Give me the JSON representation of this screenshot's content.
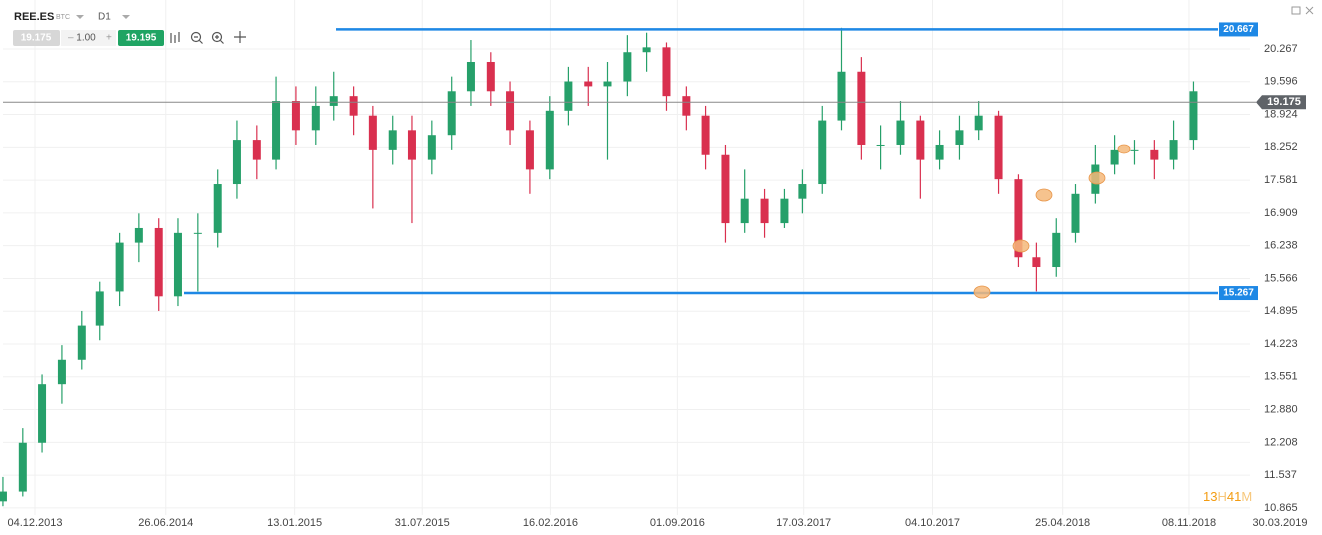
{
  "toolbar": {
    "symbol": "REE.ES",
    "currency": "BTC",
    "interval": "D1",
    "bid": "19.175",
    "lot": "1.00",
    "ask": "19.195"
  },
  "countdown": [
    "13",
    "H",
    "41",
    "M"
  ],
  "chart_data": {
    "type": "candlestick",
    "x": [
      "15.10.2013",
      "15.11.2013",
      "15.12.2013",
      "15.01.2014",
      "15.02.2014",
      "15.03.2014",
      "15.04.2014",
      "15.05.2014",
      "15.06.2014",
      "15.07.2014",
      "15.08.2014",
      "15.09.2014",
      "15.10.2014",
      "15.11.2014",
      "15.12.2014",
      "15.01.2015",
      "15.02.2015",
      "15.03.2015",
      "15.04.2015",
      "15.05.2015",
      "15.06.2015",
      "15.07.2015",
      "15.08.2015",
      "15.09.2015",
      "15.10.2015",
      "15.11.2015",
      "15.12.2015",
      "15.01.2016",
      "15.02.2016",
      "15.03.2016",
      "15.04.2016",
      "15.05.2016",
      "15.06.2016",
      "15.07.2016",
      "15.08.2016",
      "15.09.2016",
      "15.10.2016",
      "15.11.2016",
      "15.12.2016",
      "15.01.2017",
      "15.02.2017",
      "15.03.2017",
      "15.04.2017",
      "15.05.2017",
      "15.06.2017",
      "15.07.2017",
      "15.08.2017",
      "15.09.2017",
      "15.10.2017",
      "15.11.2017",
      "15.12.2017",
      "15.01.2018",
      "15.02.2018",
      "15.03.2018",
      "15.04.2018",
      "15.05.2018",
      "15.06.2018",
      "15.07.2018",
      "15.08.2018",
      "15.09.2018",
      "15.10.2018",
      "15.11.2018"
    ],
    "open": [
      11.0,
      11.2,
      12.2,
      13.4,
      13.9,
      14.6,
      15.3,
      16.3,
      16.6,
      15.2,
      16.5,
      16.5,
      17.5,
      18.4,
      18.0,
      19.2,
      18.6,
      19.1,
      19.3,
      18.9,
      18.2,
      18.6,
      18.0,
      18.5,
      19.4,
      20.0,
      19.4,
      18.6,
      17.8,
      19.0,
      19.6,
      19.5,
      19.6,
      20.2,
      20.3,
      19.3,
      18.9,
      18.1,
      16.7,
      17.2,
      16.7,
      17.2,
      17.5,
      18.8,
      19.8,
      18.3,
      18.3,
      18.8,
      18.0,
      18.3,
      18.6,
      18.9,
      17.6,
      16.0,
      15.8,
      16.5,
      17.3,
      17.9,
      18.2,
      18.2,
      18.0,
      18.4
    ],
    "high": [
      11.5,
      12.5,
      13.6,
      14.2,
      14.9,
      15.5,
      16.5,
      16.9,
      16.8,
      16.8,
      16.9,
      17.8,
      18.8,
      18.7,
      19.7,
      19.5,
      19.5,
      19.8,
      19.5,
      19.1,
      18.9,
      18.9,
      18.8,
      19.7,
      20.45,
      20.2,
      19.6,
      18.8,
      19.3,
      19.9,
      19.9,
      20.0,
      20.55,
      20.6,
      20.4,
      19.5,
      19.1,
      18.3,
      17.8,
      17.4,
      17.4,
      17.8,
      19.1,
      20.7,
      20.1,
      18.7,
      19.2,
      18.9,
      18.6,
      18.9,
      19.2,
      19.0,
      17.7,
      16.3,
      16.8,
      17.5,
      18.3,
      18.5,
      18.4,
      18.4,
      18.8,
      19.6
    ],
    "low": [
      10.9,
      11.1,
      12.0,
      13.0,
      13.7,
      14.3,
      15.0,
      15.9,
      14.9,
      15.0,
      15.3,
      16.2,
      17.2,
      17.6,
      17.8,
      18.3,
      18.3,
      18.8,
      18.5,
      17.0,
      17.9,
      16.7,
      17.7,
      18.2,
      19.1,
      19.1,
      18.3,
      17.3,
      17.6,
      18.7,
      19.1,
      18.0,
      19.3,
      19.8,
      19.0,
      18.6,
      17.8,
      16.3,
      16.5,
      16.4,
      16.6,
      16.9,
      17.3,
      18.6,
      18.0,
      17.8,
      18.1,
      17.2,
      17.8,
      18.0,
      18.4,
      17.3,
      15.8,
      15.3,
      15.6,
      16.3,
      17.1,
      17.7,
      17.9,
      17.6,
      17.8,
      18.2
    ],
    "close": [
      11.2,
      12.2,
      13.4,
      13.9,
      14.6,
      15.3,
      16.3,
      16.6,
      15.2,
      16.5,
      16.5,
      17.5,
      18.4,
      18.0,
      19.2,
      18.6,
      19.1,
      19.3,
      18.9,
      18.2,
      18.6,
      18.0,
      18.5,
      19.4,
      20.0,
      19.4,
      18.6,
      17.8,
      19.0,
      19.6,
      19.5,
      19.6,
      20.2,
      20.3,
      19.3,
      18.9,
      18.1,
      16.7,
      17.2,
      16.7,
      17.2,
      17.5,
      18.8,
      19.8,
      18.3,
      18.3,
      18.8,
      18.0,
      18.3,
      18.6,
      18.9,
      17.6,
      16.0,
      15.8,
      16.5,
      17.3,
      17.9,
      18.2,
      18.2,
      18.0,
      18.4,
      19.4
    ],
    "up_color": "#26a06a",
    "down_color": "#d9304f",
    "ylim": [
      10.72,
      21.27
    ],
    "yticks": [
      20.267,
      19.596,
      18.924,
      18.252,
      17.581,
      16.909,
      16.238,
      15.566,
      14.895,
      14.223,
      13.551,
      {
        "value": 12.88,
        "label": "12.880"
      },
      12.208,
      11.537,
      10.865
    ],
    "xticks": [
      "04.12.2013",
      "26.06.2014",
      "13.01.2015",
      "31.07.2015",
      "16.02.2016",
      "01.09.2016",
      "17.03.2017",
      "04.10.2017",
      "25.04.2018",
      "08.11.2018",
      "30.03.2019"
    ],
    "grid": true,
    "levels": [
      {
        "value": 20.667,
        "label": "20.667",
        "color": "#1e88e5"
      },
      {
        "value": 15.267,
        "label": "15.267",
        "color": "#1e88e5"
      }
    ],
    "last_price": {
      "value": 19.175,
      "label": "19.175"
    }
  }
}
